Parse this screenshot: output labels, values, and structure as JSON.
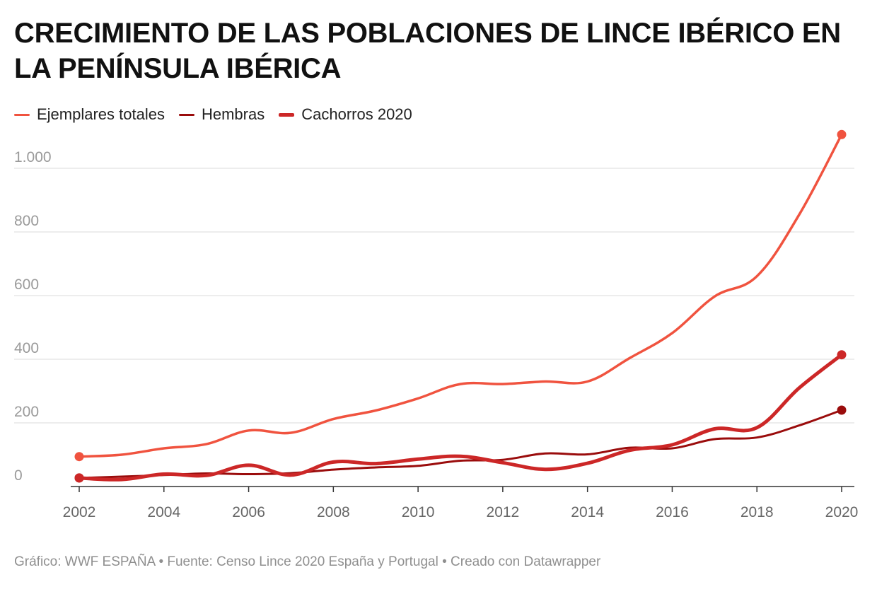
{
  "title": "CRECIMIENTO DE LAS POBLACIONES DE LINCE IBÉRICO EN LA PENÍNSULA IBÉRICA",
  "footer": "Gráfico: WWF ESPAÑA • Fuente: Censo Lince 2020 España y Portugal • Creado con Datawrapper",
  "colors": {
    "ejemplares": "#f0533f",
    "hembras": "#9a0c0c",
    "cachorros": "#cc2727",
    "grid": "#e2e2e2",
    "axis": "#333333",
    "tick_label": "#9a9a9a"
  },
  "chart_data": {
    "type": "line",
    "title": "CRECIMIENTO DE LAS POBLACIONES DE LINCE IBÉRICO EN LA PENÍNSULA IBÉRICA",
    "xlabel": "",
    "ylabel": "",
    "ylim": [
      0,
      1100
    ],
    "xlim": [
      2002,
      2020
    ],
    "grid": true,
    "legend_position": "top-left",
    "x_ticks": [
      2002,
      2004,
      2006,
      2008,
      2010,
      2012,
      2014,
      2016,
      2018,
      2020
    ],
    "x_tick_labels": [
      "2002",
      "2004",
      "2006",
      "2008",
      "2010",
      "2012",
      "2014",
      "2016",
      "2018",
      "2020"
    ],
    "y_ticks": [
      0,
      200,
      400,
      600,
      800,
      1000
    ],
    "y_tick_labels": [
      "0",
      "200",
      "400",
      "600",
      "800",
      "1.000"
    ],
    "x": [
      2002,
      2003,
      2004,
      2005,
      2006,
      2007,
      2008,
      2009,
      2010,
      2011,
      2012,
      2013,
      2014,
      2015,
      2016,
      2017,
      2018,
      2019,
      2020
    ],
    "series": [
      {
        "name": "Ejemplares totales",
        "color": "#f0533f",
        "values": [
          94,
          100,
          120,
          133,
          176,
          169,
          212,
          239,
          277,
          322,
          322,
          330,
          330,
          404,
          482,
          597,
          661,
          855,
          1106
        ]
      },
      {
        "name": "Hembras",
        "color": "#9a0c0c",
        "values": [
          27,
          31,
          36,
          41,
          39,
          42,
          53,
          60,
          65,
          81,
          84,
          104,
          101,
          122,
          120,
          149,
          154,
          192,
          240
        ]
      },
      {
        "name": "Cachorros 2020",
        "color": "#cc2727",
        "values": [
          27,
          22,
          39,
          35,
          67,
          36,
          77,
          72,
          86,
          95,
          75,
          54,
          73,
          114,
          131,
          181,
          185,
          310,
          414
        ]
      }
    ],
    "endpoint_markers": [
      true,
      true,
      true
    ]
  }
}
